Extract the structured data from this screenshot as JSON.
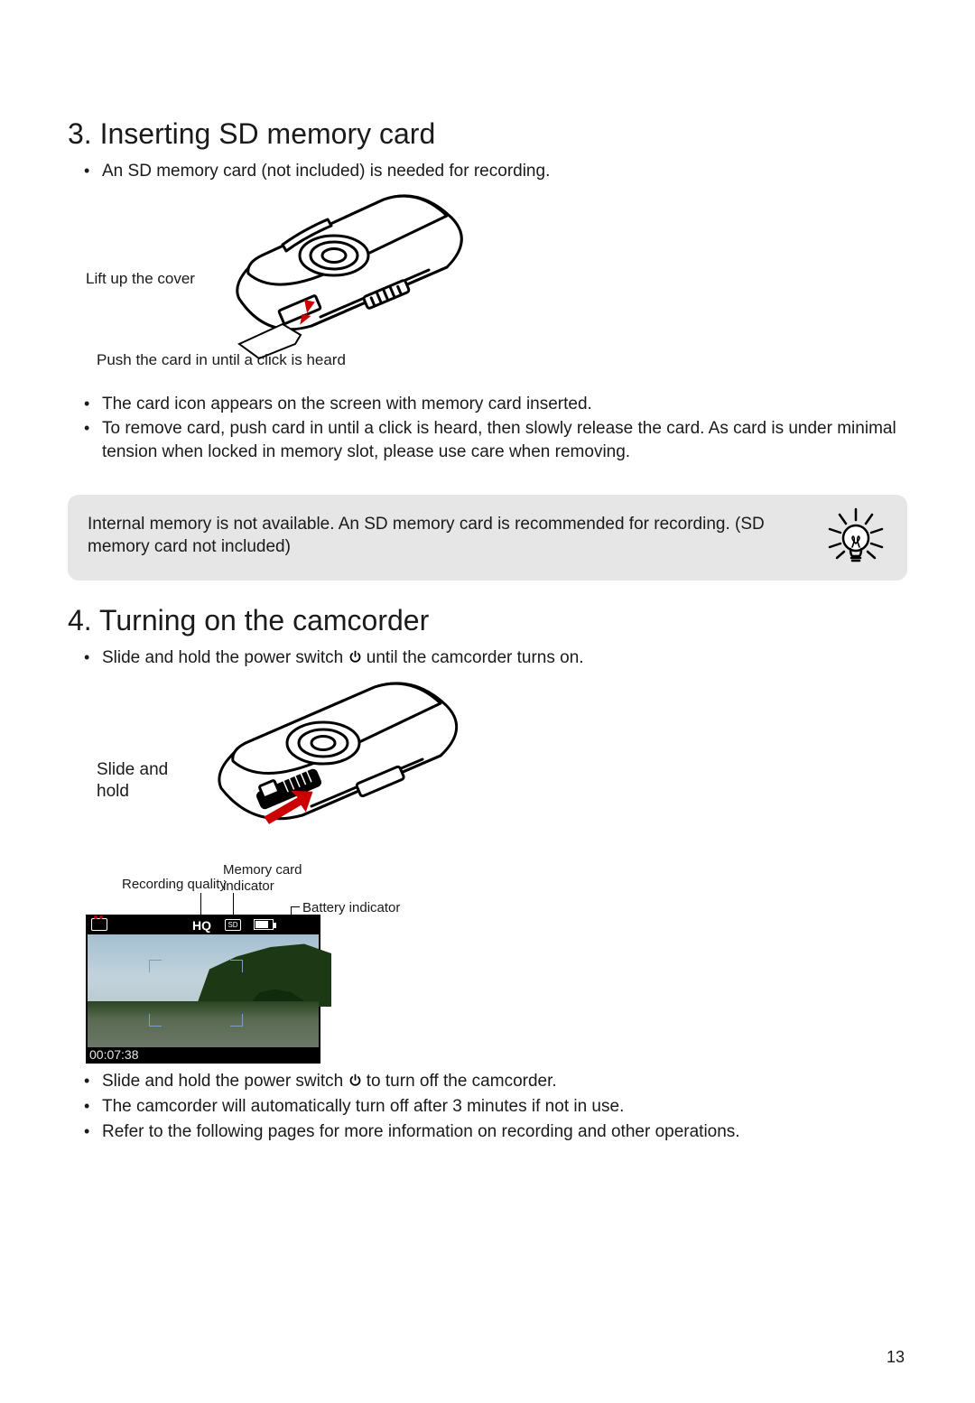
{
  "section3": {
    "heading": "3. Inserting SD memory card",
    "intro": "An SD memory card (not included) is needed for recording.",
    "caption_lift": "Lift up the cover",
    "caption_push": "Push the card in until a click is heard",
    "bullet_cardicon": "The card icon appears on the screen with memory card inserted.",
    "bullet_remove": "To remove card, push card in until a click is heard, then slowly release the card. As card is under minimal tension when locked in memory slot, please use care when removing."
  },
  "note": {
    "text": "Internal memory is not available. An SD memory card is recommended for recording.  (SD memory card not included)"
  },
  "section4": {
    "heading": "4. Turning on the camcorder",
    "bullet_on_pre": "Slide and hold the power switch ",
    "bullet_on_post": " until the camcorder turns on.",
    "caption_slide": "Slide and hold",
    "label_recq": "Recording quality",
    "label_mem": "Memory card indicator",
    "label_batt": "Battery indicator",
    "hq_text": "HQ",
    "sd_text": "SD",
    "timecode": "00:07:38",
    "bullet_off_pre": "Slide and hold the power switch ",
    "bullet_off_post": " to turn off the camcorder.",
    "bullet_auto": "The camcorder will automatically turn off after 3 minutes if not in use.",
    "bullet_refer": "Refer to the following pages for more information on recording and other operations."
  },
  "page_number": "13",
  "colors": {
    "arrow": "#cc0000",
    "notebg": "#e6e6e6"
  }
}
